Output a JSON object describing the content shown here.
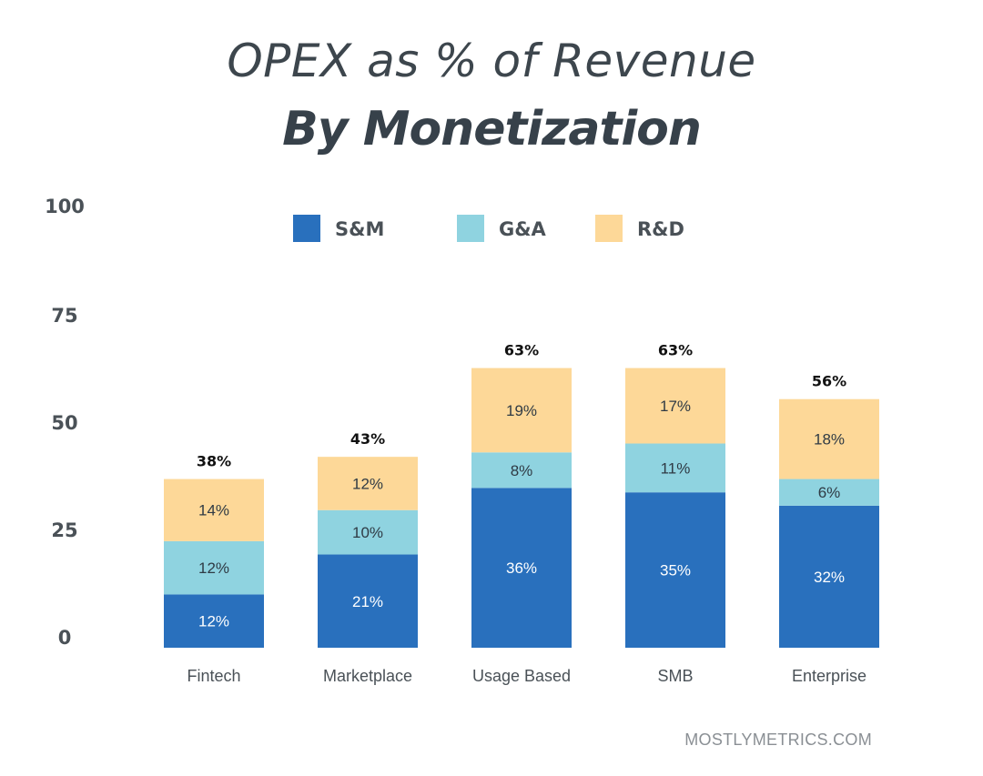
{
  "title": "OPEX as % of Revenue",
  "subtitle": "By Monetization",
  "watermark": "MOSTLYMETRICS.COM",
  "chart_data": {
    "type": "bar",
    "stacked": true,
    "categories": [
      "Fintech",
      "Marketplace",
      "Usage Based",
      "SMB",
      "Enterprise"
    ],
    "series": [
      {
        "name": "S&M",
        "color": "#2970bd",
        "values": [
          12,
          21,
          36,
          35,
          32
        ],
        "labels": [
          "12%",
          "21%",
          "36%",
          "35%",
          "32%"
        ]
      },
      {
        "name": "G&A",
        "color": "#8fd3e0",
        "values": [
          12,
          10,
          8,
          11,
          6
        ],
        "labels": [
          "12%",
          "10%",
          "8%",
          "11%",
          "6%"
        ]
      },
      {
        "name": "R&D",
        "color": "#fdd898",
        "values": [
          14,
          12,
          19,
          17,
          18
        ],
        "labels": [
          "14%",
          "12%",
          "19%",
          "17%",
          "18%"
        ]
      }
    ],
    "totals": [
      "38%",
      "43%",
      "63%",
      "63%",
      "56%"
    ],
    "yticks": [
      "0",
      "25",
      "50",
      "75",
      "100"
    ],
    "ylim": [
      0,
      100
    ],
    "grid": false,
    "legend_position": "top"
  }
}
